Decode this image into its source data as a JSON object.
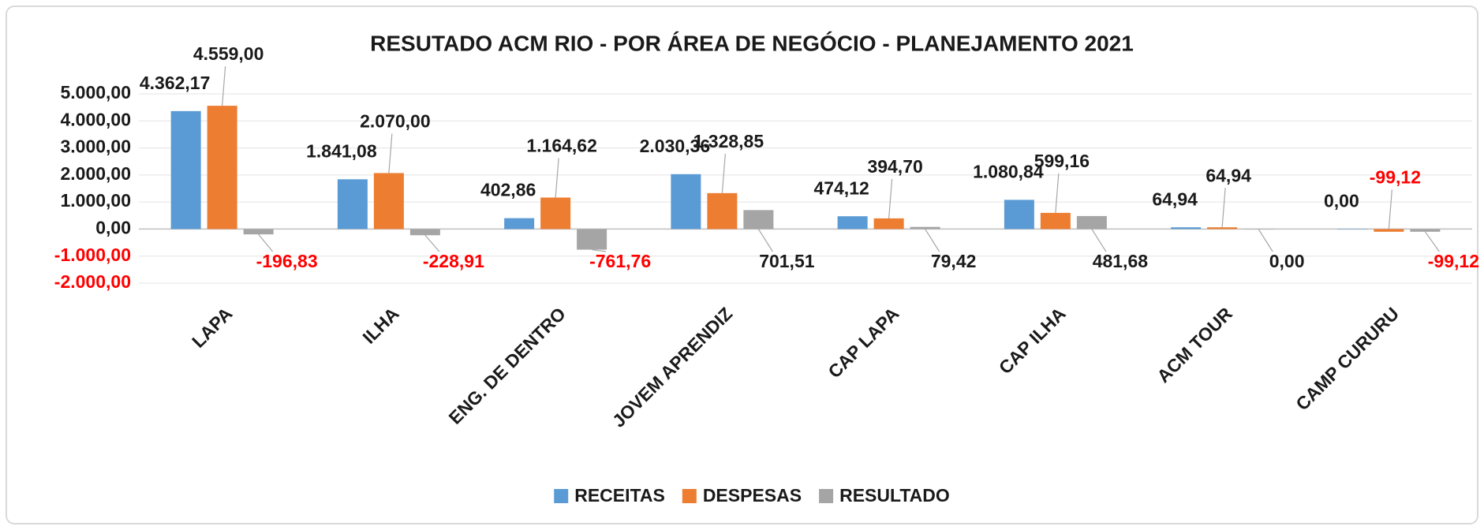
{
  "chart_data": {
    "type": "bar",
    "title": "RESUTADO ACM RIO - POR ÁREA DE NEGÓCIO - PLANEJAMENTO 2021",
    "categories": [
      "LAPA",
      "ILHA",
      "ENG. DE DENTRO",
      "JOVEM APRENDIZ",
      "CAP LAPA",
      "CAP ILHA",
      "ACM TOUR",
      "CAMP CURURU"
    ],
    "series": [
      {
        "name": "RECEITAS",
        "color": "#5b9bd5",
        "values": [
          4362.17,
          1841.08,
          402.86,
          2030.36,
          474.12,
          1080.84,
          64.94,
          0
        ],
        "value_labels": [
          "4.362,17",
          "1.841,08",
          "402,86",
          "2.030,36",
          "474,12",
          "1.080,84",
          "64,94",
          "0,00"
        ]
      },
      {
        "name": "DESPESAS",
        "color": "#ed7d31",
        "values": [
          4559,
          2070,
          1164.62,
          1328.85,
          394.7,
          599.16,
          64.94,
          -99.12
        ],
        "value_labels": [
          "4.559,00",
          "2.070,00",
          "1.164,62",
          "1.328,85",
          "394,70",
          "599,16",
          "64,94",
          "-99,12"
        ]
      },
      {
        "name": "RESULTADO",
        "color": "#a5a5a5",
        "values": [
          -196.83,
          -228.91,
          -761.76,
          701.51,
          79.42,
          481.68,
          0,
          -99.12
        ],
        "value_labels": [
          "-196,83",
          "-228,91",
          "-761,76",
          "701,51",
          "79,42",
          "481,68",
          "0,00",
          "-99,12"
        ]
      }
    ],
    "ylim": [
      -2000,
      5000
    ],
    "yticks": [
      {
        "value": -2000,
        "label": "-2.000,00"
      },
      {
        "value": -1000,
        "label": "-1.000,00"
      },
      {
        "value": 0,
        "label": "0,00"
      },
      {
        "value": 1000,
        "label": "1.000,00"
      },
      {
        "value": 2000,
        "label": "2.000,00"
      },
      {
        "value": 3000,
        "label": "3.000,00"
      },
      {
        "value": 4000,
        "label": "4.000,00"
      },
      {
        "value": 5000,
        "label": "5.000,00"
      }
    ],
    "grid": true,
    "negative_label_color": "#ff0000",
    "legend": "bottom"
  }
}
